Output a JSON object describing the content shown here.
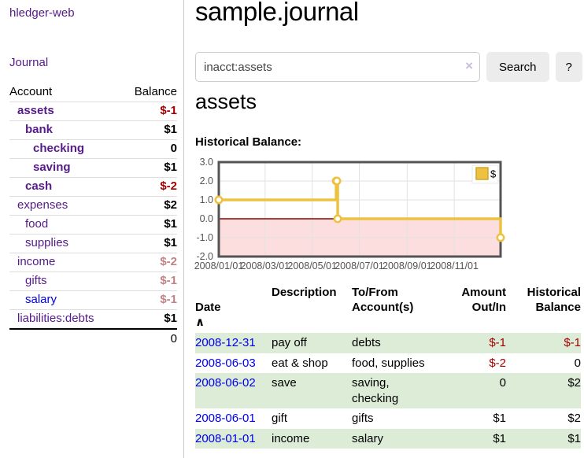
{
  "sidebar": {
    "app_title": "hledger-web",
    "nav": {
      "journal_label": "Journal"
    },
    "accounts_table": {
      "headers": {
        "account": "Account",
        "balance": "Balance"
      },
      "rows": [
        {
          "name": "assets",
          "balance": "$-1",
          "indent": 1,
          "bold": true,
          "balance_style": "neg"
        },
        {
          "name": "bank",
          "balance": "$1",
          "indent": 2,
          "bold": true,
          "balance_style": "pos"
        },
        {
          "name": "checking",
          "balance": "0",
          "indent": 3,
          "bold": true,
          "balance_style": "pos"
        },
        {
          "name": "saving",
          "balance": "$1",
          "indent": 3,
          "bold": true,
          "balance_style": "pos"
        },
        {
          "name": "cash",
          "balance": "$-2",
          "indent": 2,
          "bold": true,
          "balance_style": "neg"
        },
        {
          "name": "expenses",
          "balance": "$2",
          "indent": 1,
          "bold": false,
          "balance_style": "pos"
        },
        {
          "name": "food",
          "balance": "$1",
          "indent": 2,
          "bold": false,
          "balance_style": "pos"
        },
        {
          "name": "supplies",
          "balance": "$1",
          "indent": 2,
          "bold": false,
          "balance_style": "pos"
        },
        {
          "name": "income",
          "balance": "$-2",
          "indent": 1,
          "bold": false,
          "balance_style": "neg-dim"
        },
        {
          "name": "gifts",
          "balance": "$-1",
          "indent": 2,
          "bold": false,
          "balance_style": "neg-dim"
        },
        {
          "name": "salary",
          "balance": "$-1",
          "indent": 2,
          "bold": false,
          "balance_style": "neg-dim",
          "link_style": "unvisited"
        },
        {
          "name": "liabilities:debts",
          "balance": "$1",
          "indent": 1,
          "bold": false,
          "balance_style": "pos"
        }
      ],
      "total": "0"
    }
  },
  "main": {
    "title": "sample.journal",
    "search": {
      "value": "inacct:assets",
      "clear_icon": "×",
      "button_label": "Search",
      "help_label": "?"
    },
    "account_heading": "assets",
    "chart_label": "Historical Balance:"
  },
  "chart_data": {
    "type": "line",
    "title": "Historical Balance",
    "steps": true,
    "series": [
      {
        "name": "$",
        "color": "#edc240",
        "points": [
          {
            "date": "2008-01-01",
            "value": 1
          },
          {
            "date": "2008-06-01",
            "value": 2
          },
          {
            "date": "2008-06-02",
            "value": 2
          },
          {
            "date": "2008-06-03",
            "value": 0
          },
          {
            "date": "2008-12-31",
            "value": -1
          }
        ]
      }
    ],
    "xlim": [
      "2008-01-01",
      "2008-12-31"
    ],
    "ylim": [
      -2,
      3
    ],
    "y_ticks": [
      {
        "label": "3.0",
        "value": 3
      },
      {
        "label": "2.0",
        "value": 2
      },
      {
        "label": "1.0",
        "value": 1
      },
      {
        "label": "0.0",
        "value": 0
      },
      {
        "label": "-1.0",
        "value": -1
      },
      {
        "label": "-2.0",
        "value": -2
      }
    ],
    "x_ticks": [
      {
        "label": "2008/01/01",
        "date": "2008-01-01"
      },
      {
        "label": "2008/03/01",
        "date": "2008-03-01"
      },
      {
        "label": "2008/05/01",
        "date": "2008-05-01"
      },
      {
        "label": "2008/07/01",
        "date": "2008-07-01"
      },
      {
        "label": "2008/09/01",
        "date": "2008-09-01"
      },
      {
        "label": "2008/11/01",
        "date": "2008-11-01"
      }
    ],
    "legend": {
      "label": "$",
      "position": "top-right",
      "swatch_color": "#edc240"
    },
    "grid": true,
    "grid_color": "#e2e2e2",
    "border_color": "#545454",
    "zero_line_color": "#8b0000",
    "negative_region_color": "#fcdede",
    "tick_label_color": "#545454"
  },
  "register_table": {
    "headers": [
      {
        "label": "Date",
        "sort_icon": "∧"
      },
      {
        "label": "Description"
      },
      {
        "label": "To/From\nAccount(s)"
      },
      {
        "label": "Amount\nOut/In"
      },
      {
        "label": "Historical\nBalance"
      }
    ],
    "rows": [
      {
        "date": "2008-12-31",
        "description": "pay off",
        "accounts": "debts",
        "amount": "$-1",
        "balance": "$-1"
      },
      {
        "date": "2008-06-03",
        "description": "eat & shop",
        "accounts": "food, supplies",
        "amount": "$-2",
        "balance": "0"
      },
      {
        "date": "2008-06-02",
        "description": "save",
        "accounts": "saving, checking",
        "amount": "0",
        "balance": "$2"
      },
      {
        "date": "2008-06-01",
        "description": "gift",
        "accounts": "gifts",
        "amount": "$1",
        "balance": "$2"
      },
      {
        "date": "2008-01-01",
        "description": "income",
        "accounts": "salary",
        "amount": "$1",
        "balance": "$1"
      }
    ]
  }
}
